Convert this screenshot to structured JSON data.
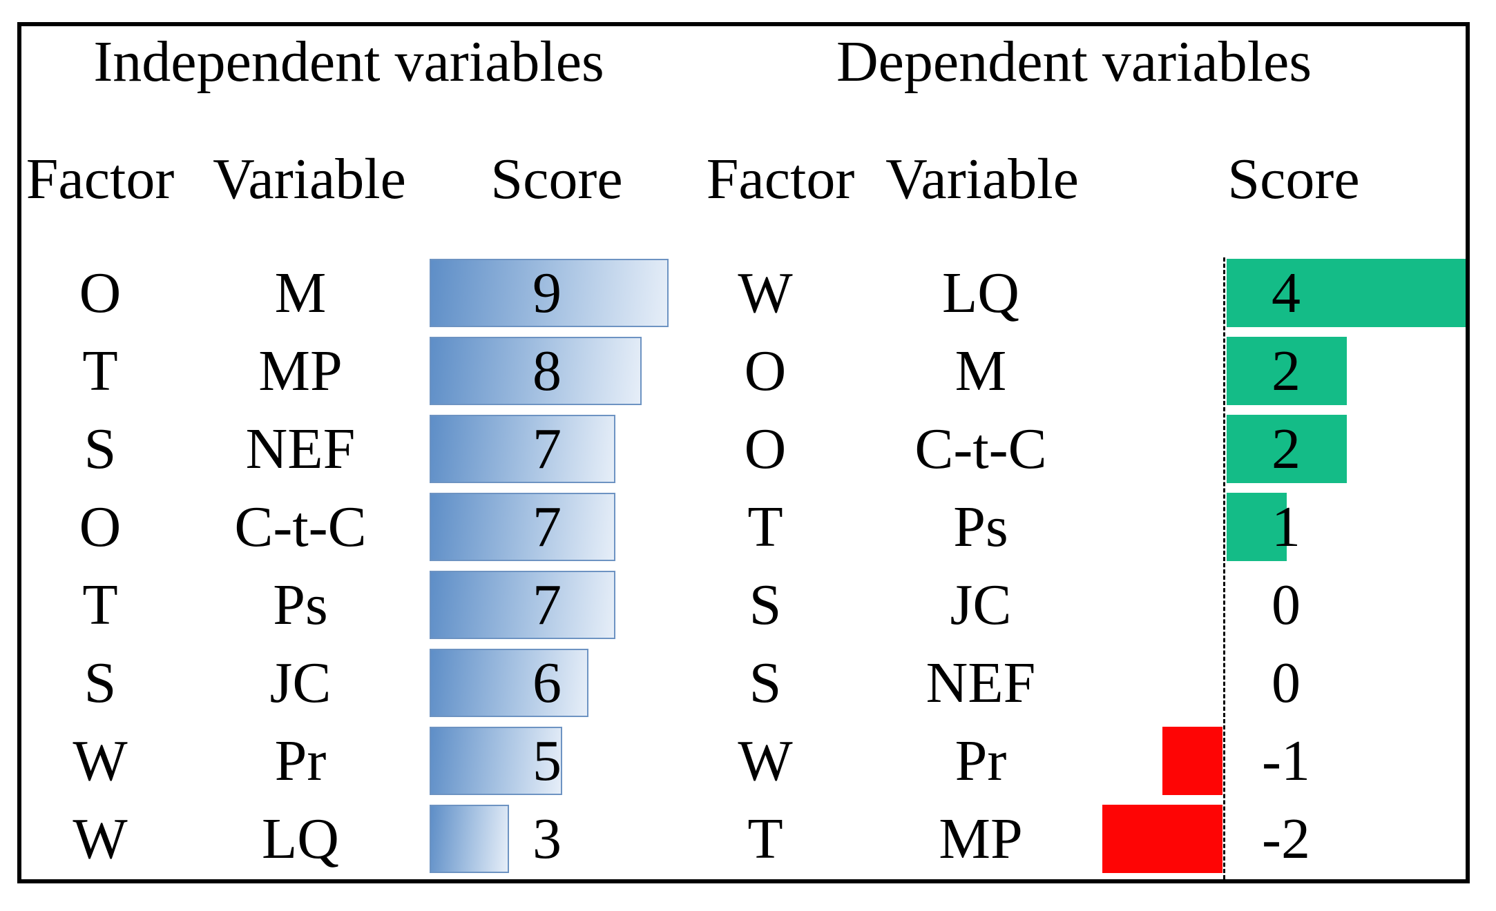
{
  "colors": {
    "positive": "#14bc87",
    "negative": "#fe0505",
    "blue_start": "#5e8ec7",
    "blue_mid": "#a9c4e3",
    "blue_end": "#e6eef8",
    "blue_border": "#6d93c2",
    "frame": "#000000"
  },
  "chart_data": [
    {
      "type": "bar",
      "title": "Independent variables",
      "orientation": "horizontal",
      "columns": [
        "Factor",
        "Variable",
        "Score"
      ],
      "value_range": [
        0,
        9
      ],
      "bar_style": "blue-gradient",
      "rows": [
        {
          "factor": "O",
          "variable": "M",
          "score": 9
        },
        {
          "factor": "T",
          "variable": "MP",
          "score": 8
        },
        {
          "factor": "S",
          "variable": "NEF",
          "score": 7
        },
        {
          "factor": "O",
          "variable": "C-t-C",
          "score": 7
        },
        {
          "factor": "T",
          "variable": "Ps",
          "score": 7
        },
        {
          "factor": "S",
          "variable": "JC",
          "score": 6
        },
        {
          "factor": "W",
          "variable": "Pr",
          "score": 5
        },
        {
          "factor": "W",
          "variable": "LQ",
          "score": 3
        }
      ]
    },
    {
      "type": "bar",
      "title": "Dependent variables",
      "orientation": "horizontal",
      "columns": [
        "Factor",
        "Variable",
        "Score"
      ],
      "value_range": [
        -2,
        4
      ],
      "baseline": 0,
      "baseline_style": "dashed",
      "positive_color": "#14bc87",
      "negative_color": "#fe0505",
      "rows": [
        {
          "factor": "W",
          "variable": "LQ",
          "score": 4
        },
        {
          "factor": "O",
          "variable": "M",
          "score": 2
        },
        {
          "factor": "O",
          "variable": "C-t-C",
          "score": 2
        },
        {
          "factor": "T",
          "variable": "Ps",
          "score": 1
        },
        {
          "factor": "S",
          "variable": "JC",
          "score": 0
        },
        {
          "factor": "S",
          "variable": "NEF",
          "score": 0
        },
        {
          "factor": "W",
          "variable": "Pr",
          "score": -1
        },
        {
          "factor": "T",
          "variable": "MP",
          "score": -2
        }
      ]
    }
  ]
}
